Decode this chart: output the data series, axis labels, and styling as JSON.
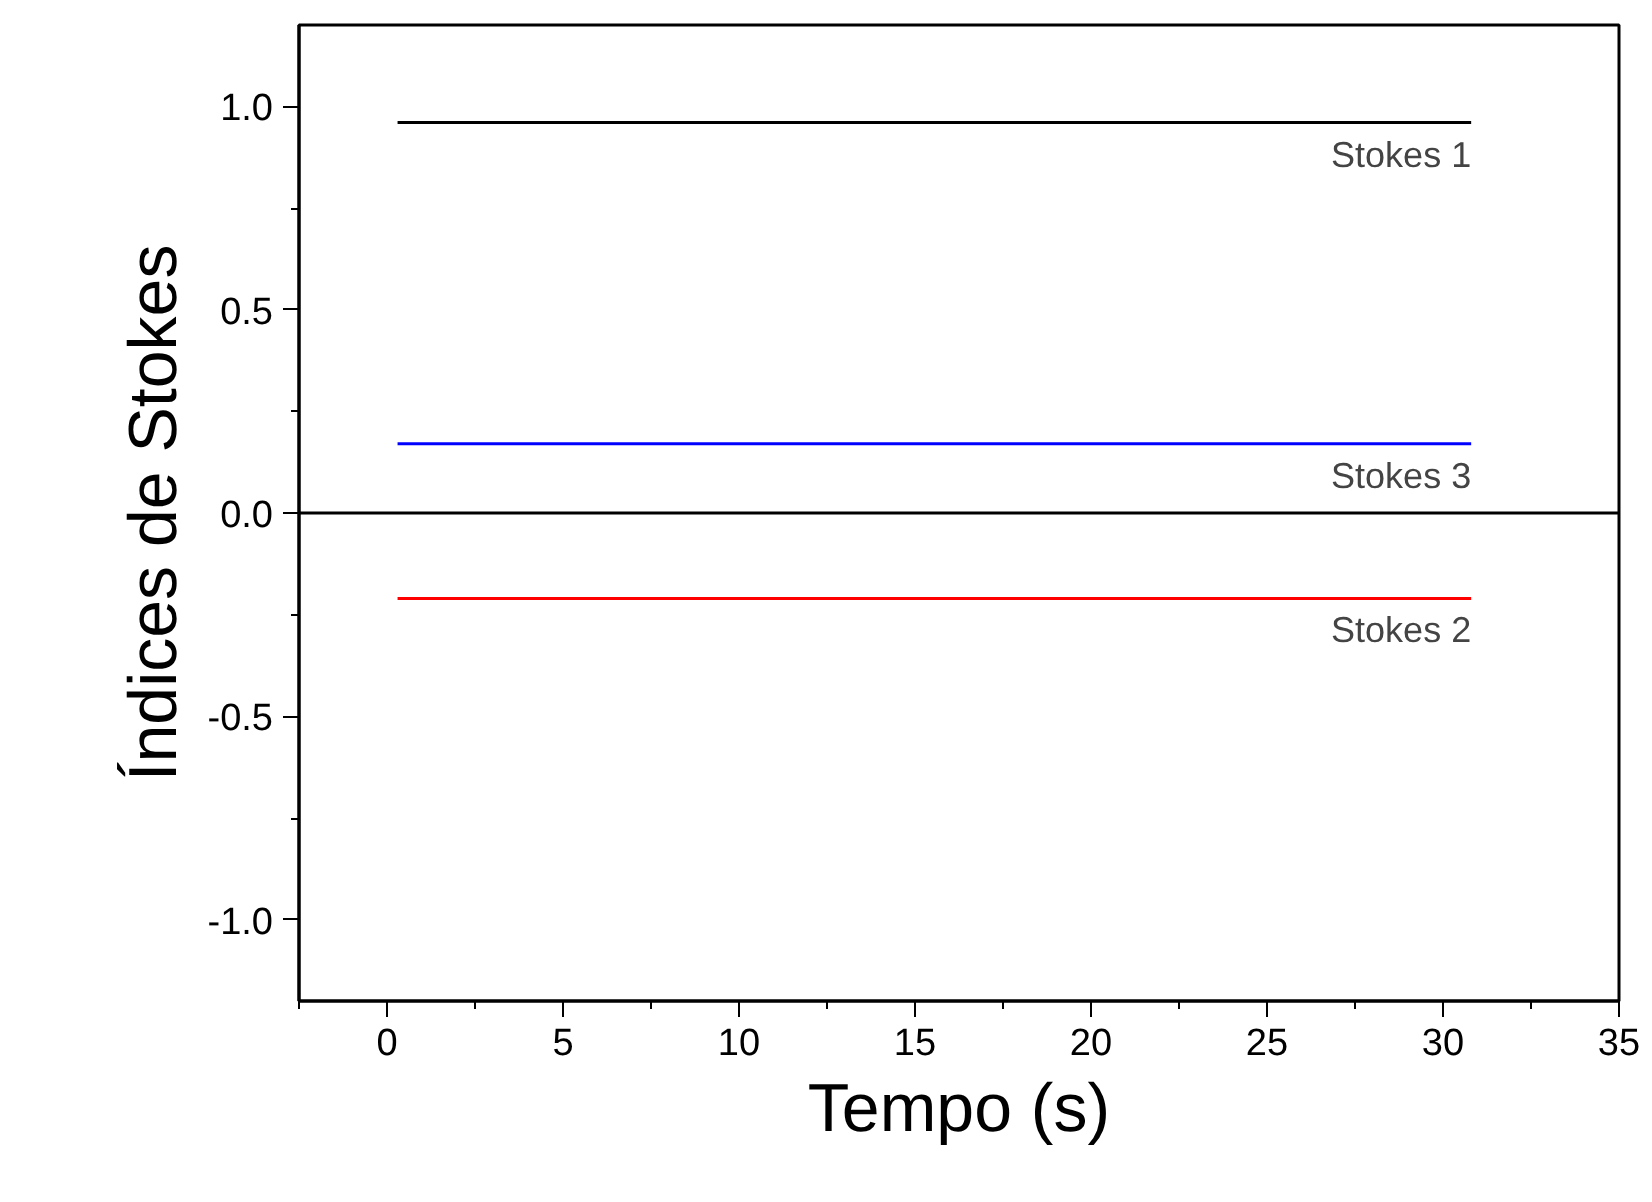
{
  "chart_data": {
    "type": "line",
    "xlabel": "Tempo (s)",
    "ylabel": "Índices de Stokes",
    "x": [
      0.3,
      30.8
    ],
    "series": [
      {
        "name": "Stokes 1",
        "color": "#000000",
        "values": [
          0.96,
          0.96
        ]
      },
      {
        "name": "Stokes 2",
        "color": "#ff0000",
        "values": [
          -0.21,
          -0.21
        ]
      },
      {
        "name": "Stokes 3",
        "color": "#0000ff",
        "values": [
          0.17,
          0.17
        ]
      }
    ],
    "xlim": [
      -2.5,
      35
    ],
    "ylim": [
      -1.2,
      1.2
    ],
    "xticks": [
      {
        "value": -2.5,
        "label": null
      },
      0,
      {
        "value": 2.5,
        "label": null
      },
      5,
      {
        "value": 7.5,
        "label": null
      },
      10,
      {
        "value": 12.5,
        "label": null
      },
      15,
      {
        "value": 17.5,
        "label": null
      },
      20,
      {
        "value": 22.5,
        "label": null
      },
      25,
      {
        "value": 27.5,
        "label": null
      },
      30,
      {
        "value": 32.5,
        "label": null
      },
      35
    ],
    "yticks": [
      {
        "value": -1.0,
        "label": "-1.0"
      },
      {
        "value": -0.75,
        "label": null
      },
      {
        "value": -0.5,
        "label": "-0.5"
      },
      {
        "value": -0.25,
        "label": null
      },
      {
        "value": 0,
        "label": "0.0"
      },
      {
        "value": 0.25,
        "label": null
      },
      {
        "value": 0.5,
        "label": "0.5"
      },
      {
        "value": 0.75,
        "label": null
      },
      {
        "value": 1.0,
        "label": "1.0"
      }
    ],
    "ref_lines": [
      {
        "axis": "y",
        "value": 0,
        "color": "#000000"
      }
    ],
    "grid": false,
    "marker": "none",
    "line_style": "solid"
  }
}
